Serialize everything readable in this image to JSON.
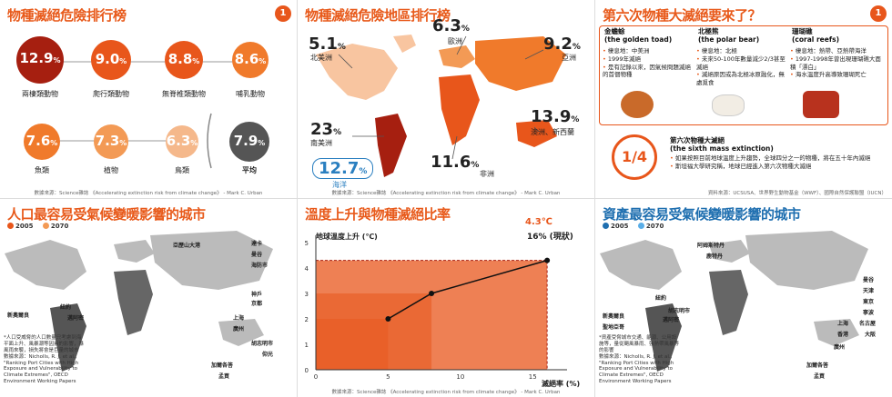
{
  "panel1": {
    "title": "物種滅絕危險排行榜",
    "badge": "1",
    "items": [
      {
        "value": "12.9",
        "label": "兩棲類動物"
      },
      {
        "value": "9.0",
        "label": "爬行類動物"
      },
      {
        "value": "8.8",
        "label": "無脊椎類動物"
      },
      {
        "value": "8.6",
        "label": "哺乳動物"
      },
      {
        "value": "7.6",
        "label": "魚類"
      },
      {
        "value": "7.3",
        "label": "植物"
      },
      {
        "value": "6.3",
        "label": "鳥類"
      },
      {
        "value": "7.9",
        "label": "平均"
      }
    ],
    "unit": "%",
    "source": "數據來源：Science雜誌 《Accelerating extinction risk from climate change》 - Mark C. Urban"
  },
  "panel2": {
    "title": "物種滅絕危險地區排行榜",
    "regions": [
      {
        "value": "5.1",
        "name": "北美洲"
      },
      {
        "value": "6.3",
        "name": "歐洲"
      },
      {
        "value": "9.2",
        "name": "亞洲"
      },
      {
        "value": "23",
        "name": "南美洲"
      },
      {
        "value": "11.6",
        "name": "非洲"
      },
      {
        "value": "13.9",
        "name": "澳洲、新西蘭"
      },
      {
        "value": "12.7",
        "name": "海洋"
      }
    ],
    "unit": "%",
    "source": "數據來源：Science雜誌 《Accelerating extinction risk from climate change》 - Mark C. Urban"
  },
  "panel3": {
    "title": "第六次物種大滅絕要來了？",
    "species": [
      {
        "name_zh": "金蟾蜍",
        "name_en": "(the golden toad)",
        "facts": [
          "棲息地：中美洲",
          "1999年滅絕",
          "是有記錄以來，因氣候問題滅絕的首個物種"
        ]
      },
      {
        "name_zh": "北極熊",
        "name_en": "(the polar bear)",
        "facts": [
          "棲息地：北極",
          "未來50-100年數量減少2/3甚至滅絕",
          "滅絕原因或為北極冰原融化，無處覓食"
        ]
      },
      {
        "name_zh": "珊瑚礁",
        "name_en": "(coral reefs)",
        "facts": [
          "棲息地：熱帶、亞熱帶海洋",
          "1997-1998年曾出現珊瑚礁大面積「漂白」",
          "海水溫度升高導致珊瑚死亡"
        ]
      }
    ],
    "extinction": {
      "fraction": "1/4",
      "name_zh": "第六次物種大滅絕",
      "name_en": "(the sixth mass extinction)",
      "facts": [
        "如果按照目前地球溫度上升趨勢，全球四分之一的物種，將在五十年內滅絕",
        "斯坦福大學研究稱，地球已經進入第六次物種大滅絕"
      ]
    },
    "source": "資料來源：UCSUSA、世界野生動物基金（WWF）、國際自然保護聯盟（IUCN）"
  },
  "panel4": {
    "title": "人口最容易受氣候變暖影響的城市",
    "legend": [
      "2005",
      "2070"
    ],
    "colors": {
      "y2005": "#e8561b",
      "y2070": "#f39a55"
    },
    "cities": [
      "亞歷山大港",
      "達卡",
      "曼谷",
      "海防市",
      "紐約",
      "新奧爾良",
      "邁阿密",
      "神戶",
      "京都",
      "上海",
      "廣州",
      "胡志明市",
      "仰光",
      "加爾各答",
      "孟買"
    ],
    "note": "*人口受威脅的人口數量只考慮到海平面上升、風暴潮等因素的影響，暴風雨來襲，損失將會是巨量的城市",
    "source_lines": [
      "數據來源：Nicholls, R. J. et al., \"Ranking Port Cities with High Exposure and Vulnerability to Climate Extremes\", OECD Environment Working Papers"
    ]
  },
  "panel5": {
    "title": "溫度上升與物種滅絕比率",
    "y_label": "地球溫度上升 (℃)",
    "x_label": "滅絕率 (%)",
    "current_temp": "4.3℃",
    "current_note": "16% (現狀)",
    "chart_data": {
      "type": "line",
      "x": [
        5,
        8,
        16
      ],
      "y": [
        2.0,
        3.0,
        4.3
      ],
      "xlabel": "滅絕率 (%)",
      "ylabel": "地球溫度上升 (℃)",
      "xlim": [
        0,
        17
      ],
      "ylim": [
        0,
        5
      ],
      "xticks": [
        "0",
        "5",
        "10",
        "15"
      ],
      "yticks": [
        "0",
        "1",
        "2",
        "3",
        "4",
        "5"
      ]
    },
    "source": "數據來源：Science雜誌 《Accelerating extinction risk from climate change》 - Mark C. Urban"
  },
  "panel6": {
    "title": "資產最容易受氣候變暖影響的城市",
    "legend": [
      "2005",
      "2070"
    ],
    "colors": {
      "y2005": "#1f6fb0",
      "y2070": "#5aaee8"
    },
    "cities": [
      "曼谷",
      "天津",
      "東京",
      "寧波",
      "名古屋",
      "紐約",
      "邁阿密",
      "新奧爾良",
      "阿姆斯特丹",
      "鹿特丹",
      "胡志明市",
      "大阪",
      "上海",
      "香港",
      "廣州",
      "加爾各答",
      "孟買",
      "聖地亞哥"
    ],
    "note": "*資產受脅城市交通、能源、公用設施等，量從颶風暴雨、強熱帶風暴等的影響",
    "source_lines": [
      "數據來源：Nicholls, R. J. et al., \"Ranking Port Cities with High Exposure and Vulnerability to Climate Extremes\", OECD Environment Working Papers"
    ]
  }
}
